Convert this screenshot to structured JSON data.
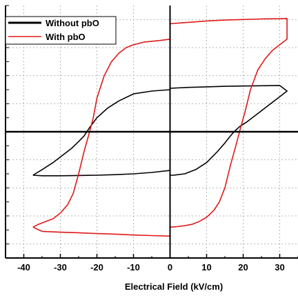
{
  "chart_data": {
    "type": "line",
    "title": "",
    "xlabel": "Electrical Field (kV/cm)",
    "ylabel": "",
    "xlim": [
      -45,
      35
    ],
    "ylim": [
      -45,
      45
    ],
    "xticks": [
      -40,
      -30,
      -20,
      -10,
      0,
      10,
      20,
      30
    ],
    "xtick_labels": [
      "-40",
      "-30",
      "-20",
      "-10",
      "0",
      "10",
      "20",
      "30"
    ],
    "grid": true,
    "legend_position": "top-left",
    "series": [
      {
        "name": "Without pbO",
        "color": "#000000",
        "x": [
          -37.5,
          -35,
          -32,
          -29,
          -27,
          -25,
          -23.5,
          -22,
          -20,
          -17,
          -14,
          -10,
          -5,
          0,
          0,
          5,
          10,
          15,
          20,
          25,
          30,
          32,
          30,
          27,
          24,
          21,
          19,
          17.5,
          16.5,
          15,
          13,
          10,
          7,
          4,
          1,
          0,
          0,
          -5,
          -10,
          -15,
          -20,
          -25,
          -30,
          -35,
          -37.5
        ],
        "y": [
          -15.5,
          -13.5,
          -11,
          -8,
          -6,
          -3.5,
          -1.5,
          1.5,
          5,
          8.5,
          11,
          13.5,
          14.5,
          15,
          15.5,
          15.8,
          16,
          16.2,
          16.3,
          16.4,
          16.5,
          14.5,
          12.5,
          9.5,
          6.5,
          3.5,
          1.8,
          0,
          -1.5,
          -4,
          -7,
          -11,
          -13.5,
          -15,
          -15.5,
          -15.5,
          -13.8,
          -14.5,
          -15,
          -15.3,
          -15.5,
          -15.6,
          -15.7,
          -15.7,
          -15.5
        ]
      },
      {
        "name": "With pbO",
        "color": "#e01818",
        "x": [
          -37.5,
          -36,
          -34,
          -32,
          -30,
          -28,
          -26.5,
          -25,
          -23.5,
          -22,
          -21,
          -20,
          -18,
          -16,
          -14,
          -12,
          -10,
          -7,
          -3,
          0,
          0,
          5,
          10,
          15,
          20,
          25,
          30,
          32,
          32,
          30,
          28,
          26,
          24,
          22,
          20.5,
          19,
          18,
          16.5,
          15,
          13.5,
          12,
          10,
          8,
          6,
          4,
          2,
          0,
          0,
          -5,
          -10,
          -15,
          -20,
          -25,
          -30,
          -35,
          -37.5
        ],
        "y": [
          -34,
          -33,
          -32,
          -31,
          -29,
          -26,
          -22,
          -15,
          -7,
          0,
          5,
          12,
          20,
          25,
          28,
          30,
          31,
          32,
          32.5,
          33,
          38.5,
          39,
          39.5,
          39.8,
          40,
          40.2,
          40.3,
          40.4,
          33,
          31,
          29,
          26,
          22,
          15,
          7,
          0,
          -5,
          -12,
          -20,
          -25,
          -28,
          -30.5,
          -32,
          -33,
          -33.5,
          -33.8,
          -34,
          -37.2,
          -37,
          -36.8,
          -36.5,
          -36.3,
          -36,
          -35.8,
          -35.5,
          -34
        ]
      }
    ]
  }
}
